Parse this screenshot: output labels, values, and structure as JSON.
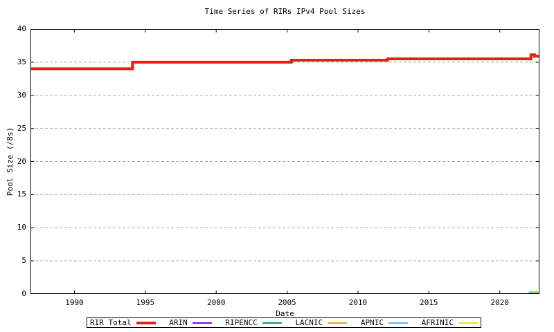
{
  "colors": {
    "background": "#ffffff",
    "axis": "#000000",
    "grid": "#a8a8a8",
    "rir_total": "#e22013",
    "arin": "#9400d3",
    "ripencc": "#00a070",
    "lacnic": "#e8a028",
    "apnic": "#5db4e5",
    "afrinic": "#e6e22e"
  },
  "chart_data": {
    "type": "line",
    "title": "Time Series of RIRs IPv4 Pool Sizes",
    "xlabel": "Date",
    "ylabel": "Pool Size (/8s)",
    "xlim": [
      1986.9,
      2022.8
    ],
    "ylim": [
      0,
      40
    ],
    "xticks": [
      1990,
      1995,
      2000,
      2005,
      2010,
      2015,
      2020
    ],
    "yticks": [
      0,
      5,
      10,
      15,
      20,
      25,
      30,
      35,
      40
    ],
    "grid": "horizontal-dashed",
    "legend_position": "bottom-center-boxed",
    "series": [
      {
        "name": "RIR Total",
        "color": "#e22013",
        "width": 4,
        "points": [
          [
            1986.9,
            34
          ],
          [
            1994.1,
            34
          ],
          [
            1994.1,
            35
          ],
          [
            2005.3,
            35
          ],
          [
            2005.3,
            35.3
          ],
          [
            2012.1,
            35.3
          ],
          [
            2012.1,
            35.5
          ],
          [
            2022.2,
            35.5
          ],
          [
            2022.2,
            36.1
          ],
          [
            2022.45,
            36.1
          ],
          [
            2022.45,
            35.9
          ],
          [
            2022.8,
            35.9
          ]
        ]
      },
      {
        "name": "ARIN",
        "color": "#9400d3",
        "width": 2,
        "points": [
          [
            2022.15,
            0.12
          ],
          [
            2022.35,
            0.12
          ]
        ]
      },
      {
        "name": "RIPENCC",
        "color": "#00a070",
        "width": 2,
        "points": []
      },
      {
        "name": "LACNIC",
        "color": "#e8a028",
        "width": 2,
        "points": []
      },
      {
        "name": "APNIC",
        "color": "#5db4e5",
        "width": 2,
        "points": [
          [
            2022.05,
            0.22
          ],
          [
            2022.8,
            0.22
          ]
        ]
      },
      {
        "name": "AFRINIC",
        "color": "#e6e22e",
        "width": 2,
        "points": [
          [
            2022.05,
            0.38
          ],
          [
            2022.8,
            0.38
          ]
        ]
      }
    ]
  }
}
